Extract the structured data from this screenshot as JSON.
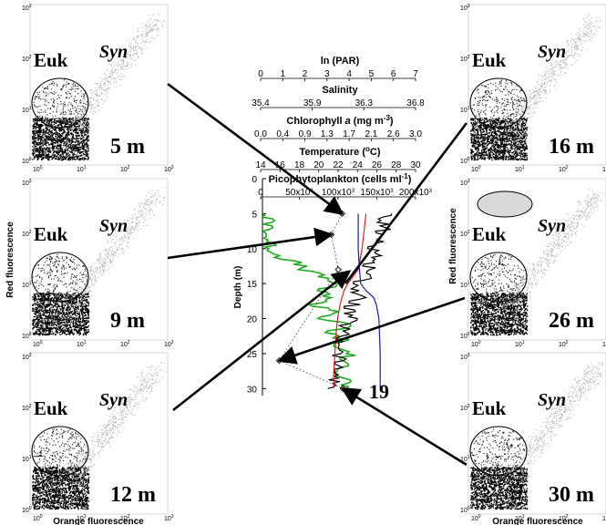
{
  "chart_data": {
    "type": "scatter",
    "title": "",
    "station": "19",
    "depth_axis": {
      "label": "Depth (m)",
      "ticks": [
        "0",
        "5",
        "10",
        "15",
        "20",
        "25",
        "30"
      ],
      "range": [
        0,
        31
      ]
    },
    "top_scales": [
      {
        "title": "ln (PAR)",
        "ticks": [
          "0",
          "1",
          "2",
          "3",
          "4",
          "5",
          "6",
          "7"
        ]
      },
      {
        "title": "Salinity",
        "ticks": [
          "35.4",
          "35.9",
          "36.3",
          "36.8"
        ]
      },
      {
        "title": "Chlorophyll a (mg m-3)",
        "title_main": "Chlorophyll ",
        "title_ital": "a",
        "title_unit": " (mg m",
        "title_sup": "-3",
        "title_end": ")",
        "ticks": [
          "0.0",
          "0.4",
          "0.9",
          "1.3",
          "1.7",
          "2.1",
          "2.6",
          "3.0"
        ]
      },
      {
        "title": "Temperature (oC)",
        "title_main": "Temperature (",
        "title_sup": "o",
        "title_end": "C)",
        "ticks": [
          "14",
          "16",
          "18",
          "20",
          "22",
          "24",
          "26",
          "28",
          "30"
        ]
      },
      {
        "title": "Picophytoplankton (cells ml-1)",
        "title_main": "Picophytoplankton (cells ml",
        "title_sup": "-1",
        "title_end": ")",
        "ticks": [
          "0",
          "50x10^3",
          "100x10^3",
          "150x10^3",
          "200x10^3"
        ],
        "tick_base": [
          "0",
          "50x10",
          "100x10",
          "150x10",
          "200x10"
        ],
        "tick_exp": "3"
      }
    ],
    "picoplankton_points": [
      {
        "depth": 5,
        "cells": 104000
      },
      {
        "depth": 8,
        "cells": 90000
      },
      {
        "depth": 13,
        "cells": 99000
      },
      {
        "depth": 26,
        "cells": 22000
      },
      {
        "depth": 30,
        "cells": 105000
      }
    ],
    "series": [
      {
        "color": "#22aa22",
        "depth": [
          5,
          6,
          7,
          8,
          9,
          10,
          11,
          12,
          13,
          14,
          15,
          16,
          17,
          18,
          19,
          20,
          21,
          22,
          23,
          24,
          25,
          26,
          27,
          28,
          29,
          30
        ],
        "x_frac": [
          0.02,
          0.04,
          0.06,
          0.03,
          0.05,
          0.07,
          0.12,
          0.25,
          0.33,
          0.45,
          0.58,
          0.42,
          0.55,
          0.38,
          0.6,
          0.45,
          0.68,
          0.5,
          0.62,
          0.55,
          0.7,
          0.58,
          0.65,
          0.6,
          0.66,
          0.62
        ]
      },
      {
        "color": "#000000",
        "depth": [
          5,
          6,
          7,
          8,
          9,
          10,
          11,
          12,
          13,
          14,
          15,
          16,
          17,
          18,
          19,
          20,
          21,
          22,
          23,
          24,
          25,
          26,
          27,
          28,
          29,
          30
        ],
        "x_frac": [
          0.95,
          0.9,
          0.96,
          0.88,
          0.92,
          0.86,
          0.9,
          0.82,
          0.85,
          0.8,
          0.75,
          0.72,
          0.74,
          0.7,
          0.66,
          0.68,
          0.64,
          0.62,
          0.6,
          0.62,
          0.58,
          0.6,
          0.56,
          0.58,
          0.55,
          0.56
        ]
      },
      {
        "color": "#dd2222",
        "depth": [
          5,
          10,
          13,
          15,
          16,
          18,
          20,
          22,
          25,
          28,
          30
        ],
        "x_frac": [
          0.8,
          0.77,
          0.74,
          0.66,
          0.63,
          0.6,
          0.58,
          0.57,
          0.56,
          0.55,
          0.55
        ]
      },
      {
        "color": "#1a1ab4",
        "depth": [
          5,
          10,
          13,
          15,
          16,
          17,
          18,
          20,
          25,
          30
        ],
        "x_frac": [
          0.74,
          0.74,
          0.75,
          0.76,
          0.8,
          0.86,
          0.88,
          0.9,
          0.91,
          0.91
        ]
      }
    ],
    "panel_axis_ticks": [
      "10^0",
      "10^1",
      "10^2",
      "10^3"
    ],
    "panels": [
      {
        "depth_label": "5 m",
        "euk": "Euk",
        "syn": "Syn"
      },
      {
        "depth_label": "9 m",
        "euk": "Euk",
        "syn": "Syn"
      },
      {
        "depth_label": "12 m",
        "euk": "Euk",
        "syn": "Syn"
      },
      {
        "depth_label": "16 m",
        "euk": "Euk",
        "syn": "Syn"
      },
      {
        "depth_label": "26 m",
        "euk": "Euk",
        "syn": "Syn"
      },
      {
        "depth_label": "30 m",
        "euk": "Euk",
        "syn": "Syn"
      }
    ],
    "xlabel": "Orange fluorescence",
    "ylabel": "Red fluorescence"
  }
}
